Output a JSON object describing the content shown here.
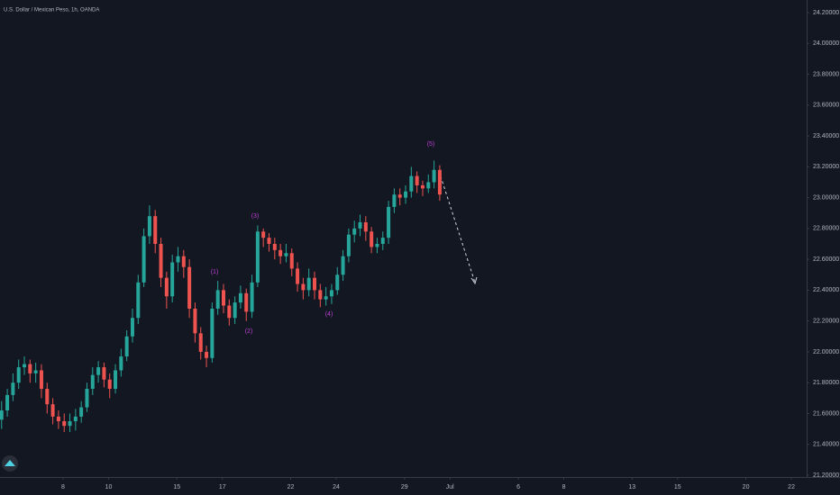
{
  "chart_data": {
    "type": "candlestick",
    "title": "U.S. Dollar / Mexican Peso, 1h, OANDA",
    "x": [
      -2.7,
      -2.45,
      -2.2,
      -1.95,
      -1.7,
      -1.45,
      -1.2,
      -0.95,
      -0.7,
      -0.45,
      -0.2,
      0.05,
      0.3,
      0.55,
      0.8,
      1.05,
      1.3,
      1.55,
      1.8,
      2.05,
      2.3,
      2.55,
      2.8,
      3.05,
      3.3,
      3.55,
      3.8,
      4.05,
      4.3,
      4.55,
      4.8,
      5.05,
      5.3,
      5.55,
      5.8,
      6.05,
      6.3,
      6.55,
      6.8,
      7.05,
      7.3,
      7.55,
      7.8,
      8.05,
      8.3,
      8.55,
      8.8,
      9.05,
      9.3,
      9.55,
      9.8,
      10.05,
      10.3,
      10.55,
      10.8,
      11.05,
      11.3,
      11.55,
      11.8,
      12.05,
      12.3,
      12.55,
      12.8,
      13.05,
      13.3,
      13.55,
      13.8,
      14.05,
      14.3,
      14.55,
      14.8,
      15.05,
      15.3,
      15.55,
      15.8,
      16.05,
      16.3,
      16.55
    ],
    "open": [
      21.56,
      21.62,
      21.72,
      21.8,
      21.9,
      21.92,
      21.86,
      21.88,
      21.76,
      21.66,
      21.58,
      21.55,
      21.52,
      21.55,
      21.58,
      21.64,
      21.76,
      21.85,
      21.9,
      21.82,
      21.76,
      21.88,
      21.97,
      22.1,
      22.22,
      22.45,
      22.75,
      22.88,
      22.7,
      22.48,
      22.36,
      22.58,
      22.62,
      22.55,
      22.28,
      22.12,
      22.0,
      21.96,
      22.28,
      22.4,
      22.3,
      22.22,
      22.32,
      22.38,
      22.26,
      22.45,
      22.78,
      22.74,
      22.7,
      22.66,
      22.62,
      22.64,
      22.54,
      22.44,
      22.4,
      22.48,
      22.4,
      22.34,
      22.36,
      22.4,
      22.5,
      22.62,
      22.76,
      22.8,
      22.84,
      22.78,
      22.68,
      22.7,
      22.74,
      22.94,
      23.02,
      23.0,
      23.04,
      23.14,
      23.08,
      23.06,
      23.1,
      23.18
    ],
    "high": [
      21.68,
      21.76,
      21.86,
      21.95,
      21.97,
      21.95,
      21.93,
      21.92,
      21.8,
      21.7,
      21.62,
      21.6,
      21.6,
      21.63,
      21.68,
      21.8,
      21.9,
      21.94,
      21.93,
      21.86,
      21.92,
      22.02,
      22.14,
      22.28,
      22.5,
      22.8,
      22.95,
      22.92,
      22.74,
      22.52,
      22.63,
      22.68,
      22.66,
      22.6,
      22.32,
      22.16,
      22.04,
      22.32,
      22.46,
      22.44,
      22.34,
      22.36,
      22.43,
      22.41,
      22.5,
      22.82,
      22.8,
      22.77,
      22.74,
      22.7,
      22.7,
      22.67,
      22.58,
      22.48,
      22.54,
      22.52,
      22.44,
      22.42,
      22.44,
      22.55,
      22.66,
      22.8,
      22.85,
      22.89,
      22.88,
      22.81,
      22.74,
      22.78,
      22.98,
      23.06,
      23.06,
      23.08,
      23.2,
      23.17,
      23.11,
      23.15,
      23.24,
      23.21
    ],
    "low": [
      21.5,
      21.58,
      21.68,
      21.76,
      21.85,
      21.8,
      21.8,
      21.7,
      21.6,
      21.53,
      21.5,
      21.48,
      21.48,
      21.49,
      21.54,
      21.61,
      21.72,
      21.8,
      21.77,
      21.7,
      21.73,
      21.84,
      21.94,
      22.06,
      22.18,
      22.42,
      22.7,
      22.64,
      22.42,
      22.28,
      22.32,
      22.52,
      22.48,
      22.22,
      22.06,
      21.95,
      21.9,
      21.93,
      22.24,
      22.25,
      22.17,
      22.18,
      22.28,
      22.2,
      22.22,
      22.42,
      22.68,
      22.65,
      22.6,
      22.57,
      22.58,
      22.49,
      22.39,
      22.34,
      22.36,
      22.34,
      22.29,
      22.3,
      22.31,
      22.37,
      22.46,
      22.58,
      22.71,
      22.75,
      22.72,
      22.64,
      22.64,
      22.66,
      22.7,
      22.9,
      22.95,
      22.96,
      23.0,
      23.03,
      23.01,
      23.03,
      23.06,
      22.98
    ],
    "close": [
      21.62,
      21.72,
      21.8,
      21.9,
      21.92,
      21.86,
      21.88,
      21.76,
      21.66,
      21.58,
      21.55,
      21.52,
      21.55,
      21.58,
      21.64,
      21.76,
      21.85,
      21.9,
      21.82,
      21.76,
      21.88,
      21.97,
      22.1,
      22.22,
      22.45,
      22.75,
      22.88,
      22.7,
      22.48,
      22.36,
      22.58,
      22.62,
      22.55,
      22.28,
      22.12,
      22.0,
      21.96,
      22.28,
      22.4,
      22.3,
      22.22,
      22.32,
      22.38,
      22.26,
      22.45,
      22.78,
      22.74,
      22.7,
      22.66,
      22.62,
      22.64,
      22.54,
      22.44,
      22.4,
      22.48,
      22.4,
      22.34,
      22.36,
      22.4,
      22.5,
      22.62,
      22.76,
      22.8,
      22.84,
      22.78,
      22.68,
      22.7,
      22.74,
      22.94,
      23.02,
      23.0,
      23.04,
      23.14,
      23.08,
      23.06,
      23.1,
      23.18,
      23.02
    ],
    "up_color": "#26a69a",
    "down_color": "#ef5350",
    "xlim": [
      -2.77,
      32.67
    ],
    "xticks": [
      {
        "value": 0,
        "label": "8"
      },
      {
        "value": 2,
        "label": "10"
      },
      {
        "value": 5,
        "label": "15"
      },
      {
        "value": 7,
        "label": "17"
      },
      {
        "value": 10,
        "label": "22"
      },
      {
        "value": 12,
        "label": "24"
      },
      {
        "value": 15,
        "label": "29"
      },
      {
        "value": 17,
        "label": "Jul"
      },
      {
        "value": 20,
        "label": "6"
      },
      {
        "value": 22,
        "label": "8"
      },
      {
        "value": 25,
        "label": "13"
      },
      {
        "value": 27,
        "label": "15"
      },
      {
        "value": 30,
        "label": "20"
      },
      {
        "value": 32,
        "label": "22"
      }
    ],
    "ylim": [
      21.2,
      24.2
    ],
    "yticks": [
      {
        "value": 21.2,
        "label": "21.20000"
      },
      {
        "value": 21.4,
        "label": "21.40000"
      },
      {
        "value": 21.6,
        "label": "21.60000"
      },
      {
        "value": 21.8,
        "label": "21.80000"
      },
      {
        "value": 22.0,
        "label": "22.00000"
      },
      {
        "value": 22.2,
        "label": "22.20000"
      },
      {
        "value": 22.4,
        "label": "22.40000"
      },
      {
        "value": 22.6,
        "label": "22.60000"
      },
      {
        "value": 22.8,
        "label": "22.80000"
      },
      {
        "value": 23.0,
        "label": "23.00000"
      },
      {
        "value": 23.2,
        "label": "23.20000"
      },
      {
        "value": 23.4,
        "label": "23.40000"
      },
      {
        "value": 23.6,
        "label": "23.60000"
      },
      {
        "value": 23.8,
        "label": "23.80000"
      },
      {
        "value": 24.0,
        "label": "24.00000"
      },
      {
        "value": 24.2,
        "label": "24.20000"
      }
    ],
    "annotations": [
      "(1)",
      "(2)",
      "(3)",
      "(4)",
      "(5)"
    ],
    "annotation_color": "#ba3fd0"
  }
}
